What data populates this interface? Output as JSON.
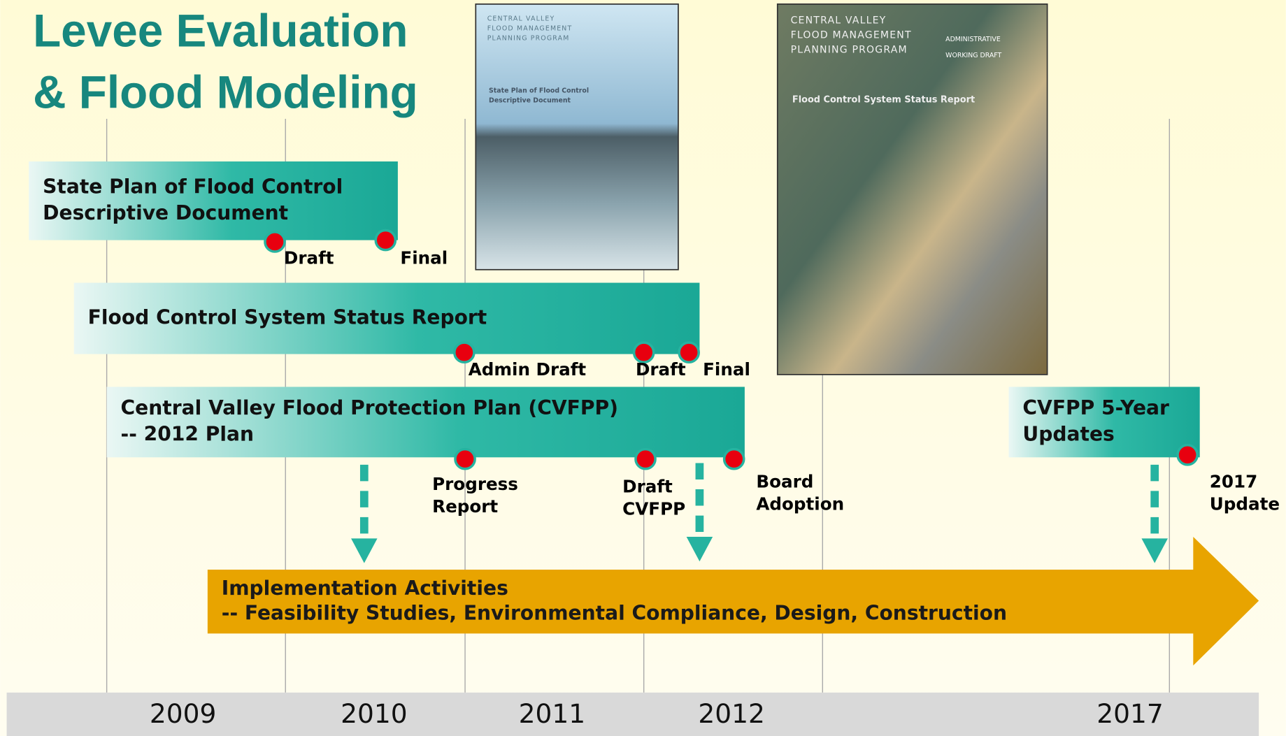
{
  "title": [
    "Levee Evaluation",
    "& Flood Modeling"
  ],
  "bars": [
    {
      "lines": [
        "State Plan of Flood Control",
        "Descriptive Document"
      ],
      "milestones": [
        {
          "lines": [
            "Draft"
          ]
        },
        {
          "lines": [
            "Final"
          ]
        }
      ]
    },
    {
      "lines": [
        "Flood Control System Status Report"
      ],
      "milestones": [
        {
          "lines": [
            "Admin Draft"
          ]
        },
        {
          "lines": [
            "Draft"
          ]
        },
        {
          "lines": [
            "Final"
          ]
        }
      ]
    },
    {
      "lines": [
        "Central Valley Flood Protection Plan (CVFPP)",
        "-- 2012 Plan"
      ],
      "milestones": [
        {
          "lines": [
            "Progress",
            "Report"
          ]
        },
        {
          "lines": [
            "Draft",
            "CVFPP"
          ]
        },
        {
          "lines": [
            "Board",
            "Adoption"
          ]
        }
      ]
    },
    {
      "lines": [
        "CVFPP 5-Year",
        "Updates"
      ],
      "milestones": [
        {
          "lines": [
            "2017",
            "Update"
          ]
        }
      ]
    }
  ],
  "implementation": {
    "lines": [
      "Implementation Activities",
      "  -- Feasibility Studies, Environmental Compliance, Design, Construction"
    ]
  },
  "years": [
    "2009",
    "2010",
    "2011",
    "2012",
    "2017"
  ],
  "covers": [
    {
      "program": [
        "CENTRAL VALLEY",
        "FLOOD MANAGEMENT",
        "PLANNING PROGRAM"
      ],
      "title": [
        "State Plan of Flood Control",
        "Descriptive Document"
      ]
    },
    {
      "program": [
        "CENTRAL VALLEY",
        "FLOOD MANAGEMENT",
        "PLANNING PROGRAM"
      ],
      "stamp": [
        "ADMINISTRATIVE",
        "WORKING DRAFT"
      ],
      "title": [
        "Flood Control System Status Report"
      ]
    }
  ]
}
